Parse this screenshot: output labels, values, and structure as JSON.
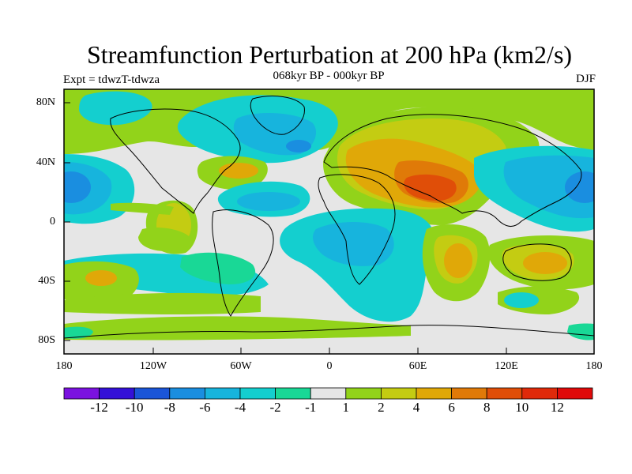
{
  "title": "Streamfunction Perturbation at 200 hPa (km2/s)",
  "experiment_label": "Expt = tdwzT-tdwza",
  "period_label": "068kyr BP - 000kyr BP",
  "season_label": "DJF",
  "lat_ticks": [
    "80N",
    "40N",
    "0",
    "40S",
    "80S"
  ],
  "lon_ticks": [
    "180",
    "120W",
    "60W",
    "0",
    "60E",
    "120E",
    "180"
  ],
  "colorbar": {
    "colors": [
      "#7b12e0",
      "#3411d8",
      "#1a55d8",
      "#1a8ee0",
      "#17b4dd",
      "#14cfcf",
      "#19d896",
      "#e6e6e6",
      "#92d31a",
      "#c4cc12",
      "#e0a808",
      "#e07a08",
      "#e04e08",
      "#e02a0a",
      "#e00a0a"
    ],
    "labels": [
      "-12",
      "-10",
      "-8",
      "-6",
      "-4",
      "-2",
      "-1",
      "1",
      "2",
      "4",
      "6",
      "8",
      "10",
      "12"
    ]
  },
  "colors": {
    "neutral": "#e6e6e6",
    "neg1": "#19d896",
    "neg2": "#14cfcf",
    "neg4": "#17b4dd",
    "neg6": "#1a8ee0",
    "pos1": "#92d31a",
    "pos2": "#c4cc12",
    "pos4": "#e0a808",
    "pos6": "#e07a08",
    "pos8": "#e04e08",
    "pos10": "#e02a0a"
  }
}
